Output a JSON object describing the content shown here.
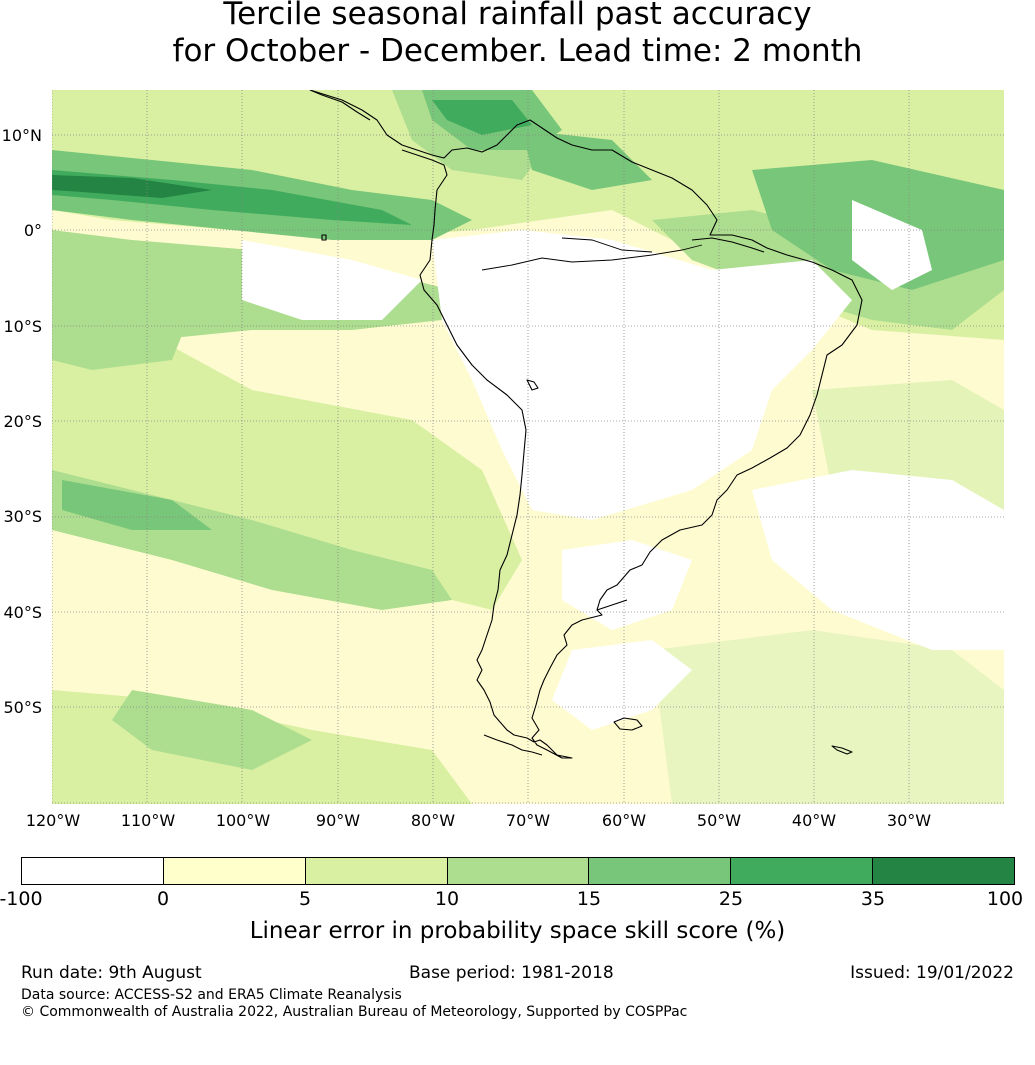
{
  "title": {
    "line1": "Tercile seasonal rainfall past accuracy",
    "line2": "for October - December. Lead time: 2 month"
  },
  "map": {
    "lat_labels": [
      "10°N",
      "0°",
      "10°S",
      "20°S",
      "30°S",
      "40°S",
      "50°S"
    ],
    "lon_labels": [
      "120°W",
      "110°W",
      "100°W",
      "90°W",
      "80°W",
      "70°W",
      "60°W",
      "50°W",
      "40°W",
      "30°W"
    ],
    "colors": {
      "land_outline": "#000000",
      "gridline": "#888888",
      "ocean_base": "#fffbd1"
    }
  },
  "legend": {
    "colors": [
      "#ffffff",
      "#ffffcc",
      "#d9f0a3",
      "#addd8e",
      "#78c679",
      "#41ab5d",
      "#238443"
    ],
    "ticks": [
      "-100",
      "0",
      "5",
      "10",
      "15",
      "25",
      "35",
      "100"
    ],
    "label": "Linear error in probability space skill score (%)"
  },
  "footer": {
    "run_date": "Run date: 9th August",
    "base_period": "Base period: 1981-2018",
    "issued": "Issued: 19/01/2022",
    "data_source": "Data source: ACCESS-S2 and ERA5 Climate Reanalysis",
    "copyright": "© Commonwealth of Australia 2022, Australian Bureau of Meteorology, Supported by COSPPac"
  }
}
